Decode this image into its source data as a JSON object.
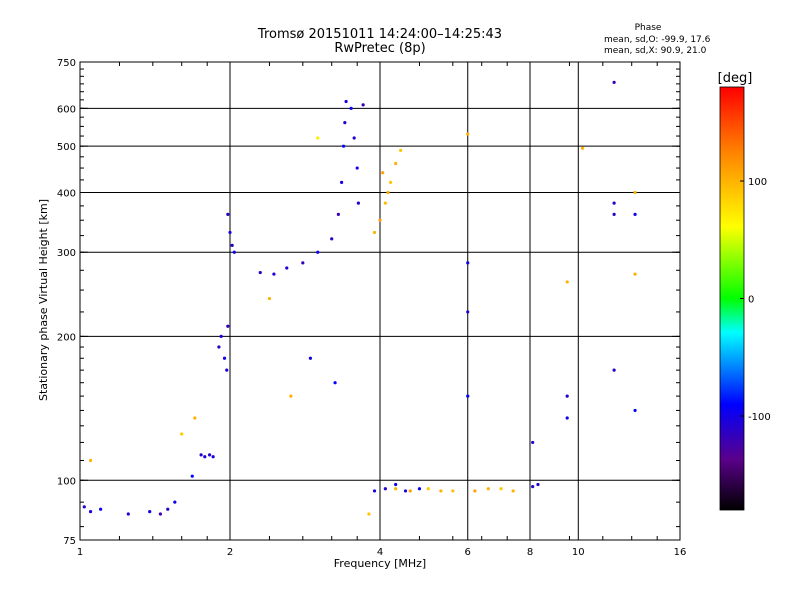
{
  "chart_data": {
    "type": "scatter",
    "title": "Tromsø 20151011 14:24:00–14:25:43",
    "subtitle": "RwPretec (8p)",
    "xlabel": "Frequency [MHz]",
    "ylabel": "Stationary phase Virtual Height [km]",
    "x_scale": "log2",
    "y_scale": "log",
    "xlim": [
      1,
      16
    ],
    "ylim": [
      75,
      750
    ],
    "x_ticks": [
      1,
      2,
      4,
      8,
      16
    ],
    "x_tick_labels": [
      "1",
      "2",
      "4",
      "8",
      "16"
    ],
    "x_extra_labels": [
      {
        "value": 6,
        "label": "6"
      },
      {
        "value": 10,
        "label": "10"
      }
    ],
    "y_ticks": [
      75,
      100,
      200,
      300,
      400,
      500,
      600,
      750
    ],
    "y_tick_labels": [
      "75",
      "100",
      "200",
      "300",
      "400",
      "500",
      "600",
      "750"
    ],
    "x_grid": [
      2,
      4,
      6,
      8,
      10
    ],
    "y_grid": [
      100,
      200,
      300,
      400,
      500,
      600
    ],
    "stats": {
      "header": "Phase",
      "line1": "mean, sd,O: -99.9, 17.6",
      "line2": "mean, sd,X:  90.9, 21.0"
    },
    "colorbar": {
      "label": "[deg]",
      "min": -180,
      "max": 180,
      "ticks": [
        -100,
        0,
        100
      ],
      "tick_labels": [
        "-100",
        "0",
        "100"
      ]
    },
    "series": [
      {
        "name": "O",
        "points": [
          [
            1.02,
            88,
            -110
          ],
          [
            1.05,
            86,
            -100
          ],
          [
            1.1,
            87,
            -95
          ],
          [
            1.25,
            85,
            -105
          ],
          [
            1.38,
            86,
            -100
          ],
          [
            1.45,
            85,
            -120
          ],
          [
            1.5,
            87,
            -110
          ],
          [
            1.55,
            90,
            -100
          ],
          [
            1.75,
            113,
            -110
          ],
          [
            1.78,
            112,
            -105
          ],
          [
            1.82,
            113,
            -110
          ],
          [
            1.85,
            112,
            -100
          ],
          [
            1.68,
            102,
            -90
          ],
          [
            1.9,
            190,
            -110
          ],
          [
            1.92,
            200,
            -105
          ],
          [
            1.95,
            180,
            -100
          ],
          [
            1.97,
            170,
            -110
          ],
          [
            1.98,
            210,
            -115
          ],
          [
            2.0,
            330,
            -100
          ],
          [
            2.02,
            310,
            -110
          ],
          [
            2.04,
            300,
            -100
          ],
          [
            1.98,
            360,
            -110
          ],
          [
            2.3,
            272,
            -110
          ],
          [
            2.45,
            270,
            -105
          ],
          [
            2.6,
            278,
            -110
          ],
          [
            2.8,
            285,
            -115
          ],
          [
            3.0,
            300,
            -100
          ],
          [
            3.2,
            320,
            -110
          ],
          [
            3.3,
            360,
            -120
          ],
          [
            3.35,
            420,
            -100
          ],
          [
            3.38,
            500,
            -90
          ],
          [
            3.4,
            560,
            -110
          ],
          [
            3.42,
            620,
            -105
          ],
          [
            3.5,
            600,
            -95
          ],
          [
            3.55,
            520,
            -110
          ],
          [
            3.6,
            450,
            -100
          ],
          [
            3.62,
            380,
            -110
          ],
          [
            3.7,
            610,
            -120
          ],
          [
            2.9,
            180,
            -100
          ],
          [
            3.25,
            160,
            -90
          ],
          [
            3.9,
            95,
            -100
          ],
          [
            4.1,
            96,
            -110
          ],
          [
            4.3,
            98,
            -100
          ],
          [
            4.5,
            95,
            -105
          ],
          [
            4.8,
            96,
            -95
          ],
          [
            8.1,
            97,
            -110
          ],
          [
            8.3,
            98,
            -105
          ],
          [
            6.0,
            225,
            -110
          ],
          [
            6.0,
            285,
            -100
          ],
          [
            6.0,
            150,
            -90
          ],
          [
            8.1,
            120,
            -110
          ],
          [
            9.5,
            150,
            -110
          ],
          [
            9.5,
            135,
            -100
          ],
          [
            11.8,
            360,
            -110
          ],
          [
            11.8,
            170,
            -110
          ],
          [
            13.0,
            360,
            -100
          ],
          [
            13.0,
            140,
            -90
          ],
          [
            11.8,
            680,
            -120
          ],
          [
            11.8,
            380,
            -110
          ]
        ]
      },
      {
        "name": "X",
        "points": [
          [
            1.05,
            110,
            100
          ],
          [
            1.6,
            125,
            90
          ],
          [
            1.7,
            135,
            100
          ],
          [
            2.4,
            240,
            100
          ],
          [
            3.9,
            330,
            100
          ],
          [
            4.0,
            350,
            110
          ],
          [
            4.1,
            380,
            95
          ],
          [
            4.2,
            420,
            90
          ],
          [
            4.3,
            460,
            100
          ],
          [
            4.4,
            490,
            90
          ],
          [
            4.05,
            440,
            110
          ],
          [
            4.15,
            400,
            105
          ],
          [
            4.3,
            96,
            100
          ],
          [
            4.6,
            95,
            110
          ],
          [
            5.0,
            96,
            90
          ],
          [
            5.3,
            95,
            100
          ],
          [
            5.6,
            95,
            95
          ],
          [
            6.2,
            95,
            110
          ],
          [
            6.6,
            96,
            100
          ],
          [
            7.0,
            96,
            90
          ],
          [
            7.4,
            95,
            100
          ],
          [
            2.65,
            150,
            100
          ],
          [
            3.0,
            520,
            70
          ],
          [
            3.8,
            85,
            90
          ],
          [
            10.2,
            495,
            100
          ],
          [
            9.5,
            260,
            100
          ],
          [
            13.0,
            270,
            100
          ],
          [
            13.0,
            400,
            100
          ],
          [
            6.0,
            530,
            100
          ]
        ]
      }
    ]
  }
}
